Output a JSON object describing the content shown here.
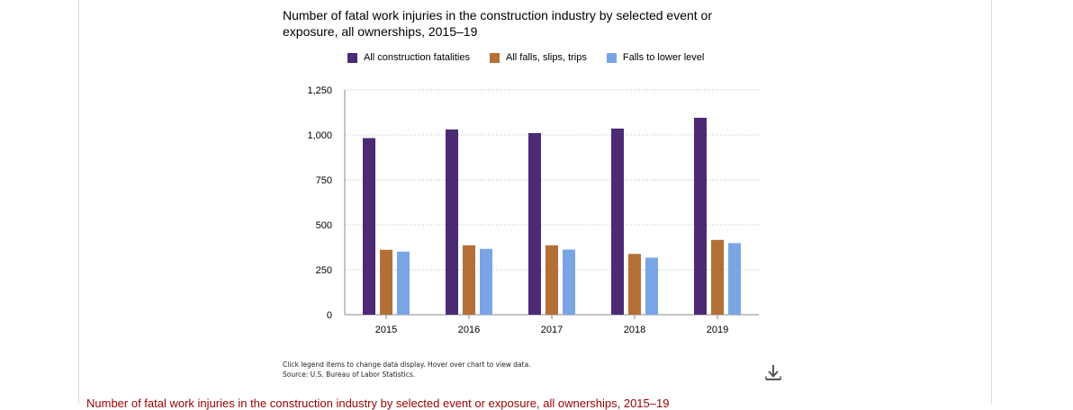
{
  "chart_data": {
    "type": "bar",
    "title_line1": "Number of fatal work injuries in the construction industry by selected event or",
    "title_line2": "exposure, all ownerships, 2015–19",
    "categories": [
      "2015",
      "2016",
      "2017",
      "2018",
      "2019"
    ],
    "series": [
      {
        "name": "All construction fatalities",
        "color": "#4b2b73",
        "values": [
          982,
          1030,
          1010,
          1035,
          1095
        ]
      },
      {
        "name": "All falls, slips, trips",
        "color": "#b46f37",
        "values": [
          361,
          386,
          386,
          338,
          416
        ]
      },
      {
        "name": "Falls to lower level",
        "color": "#7aa5e5",
        "values": [
          351,
          366,
          362,
          317,
          398
        ]
      }
    ],
    "ylim": [
      0,
      1250
    ],
    "yticks": [
      0,
      250,
      500,
      750,
      1000,
      1250
    ],
    "ytick_labels": [
      "0",
      "250",
      "500",
      "750",
      "1,000",
      "1,250"
    ],
    "grid": true,
    "legend_position": "top"
  },
  "notes": {
    "line1": "Click legend items to change data display. Hover over chart to view data.",
    "line2": "Source: U.S. Bureau of Labor Statistics."
  },
  "download_icon": "download-icon",
  "bottom_link": "Number of fatal work injuries in the construction industry by selected event or exposure, all ownerships, 2015–19"
}
